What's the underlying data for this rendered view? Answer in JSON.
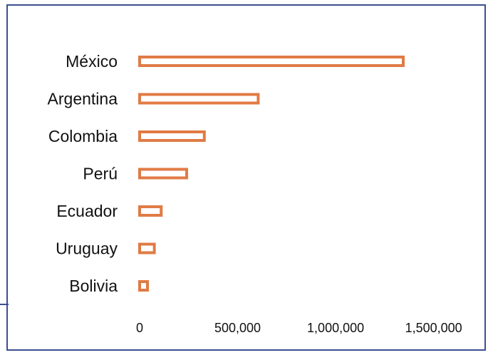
{
  "chart_data": {
    "type": "bar",
    "orientation": "horizontal",
    "categories": [
      "México",
      "Argentina",
      "Colombia",
      "Perú",
      "Ecuador",
      "Uruguay",
      "Bolivia"
    ],
    "values": [
      1345000,
      605000,
      330000,
      240000,
      110000,
      75000,
      40000
    ],
    "xticks": [
      0,
      500000,
      1000000,
      1500000
    ],
    "xtick_labels": [
      "0",
      "500,000",
      "1,000,000",
      "1,500,000"
    ],
    "xlim": [
      0,
      1500000
    ],
    "title": "",
    "xlabel": "",
    "ylabel": "",
    "grid": false,
    "legend": "none",
    "bar_style": "outline",
    "bar_color": "#e07b45",
    "frame_color": "#3b4f8f"
  }
}
